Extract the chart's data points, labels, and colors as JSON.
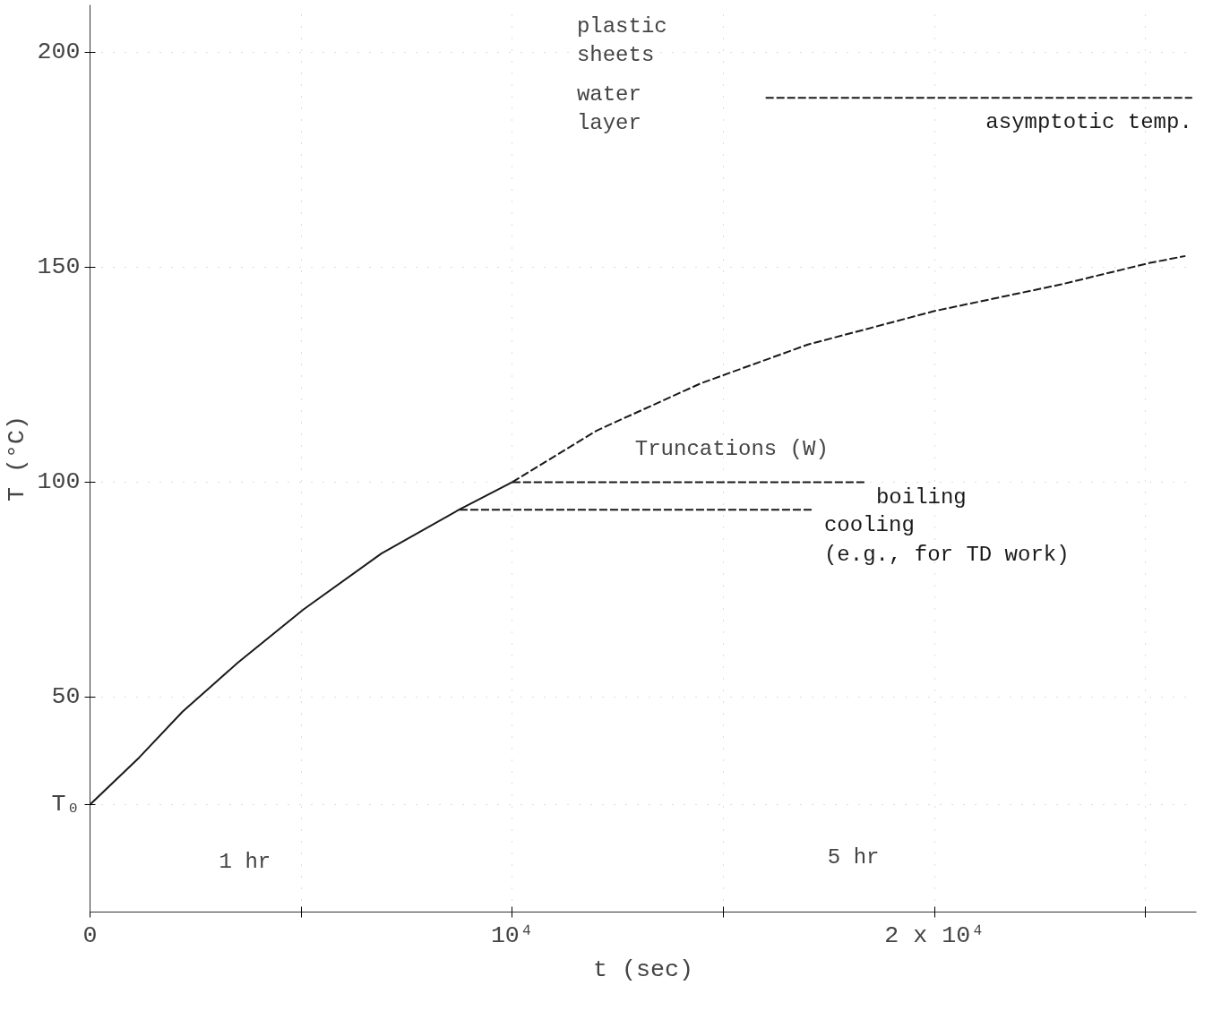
{
  "chart_data": {
    "type": "line",
    "xlabel": "t (sec)",
    "ylabel": "T (°C)",
    "xlim": [
      0,
      26200
    ],
    "ylim": [
      0,
      211
    ],
    "xticks": [
      0,
      {
        "value": 5000,
        "label": null
      },
      {
        "value": 10000,
        "label": "10⁴"
      },
      {
        "value": 15000,
        "label": null
      },
      {
        "value": 20000,
        "label": "2 x 10⁴"
      },
      {
        "value": 25000,
        "label": null
      }
    ],
    "yticks": [
      {
        "value": 25,
        "label": "T₀"
      },
      50,
      100,
      150,
      200
    ],
    "grid": true,
    "marker": "none",
    "series": [
      {
        "color": "#1a1a1a",
        "line_style": "solid",
        "x": [
          0,
          1170,
          2190,
          3500,
          5057,
          6900,
          8740,
          10000
        ],
        "values": [
          25,
          36,
          46.6,
          58,
          70.4,
          83.4,
          93.6,
          100
        ]
      },
      {
        "color": "#1a1a1a",
        "line_style": "dashed",
        "x": [
          10000,
          12000,
          14470,
          17000,
          20000,
          23000,
          25100,
          25940
        ],
        "values": [
          100,
          112,
          123,
          132,
          139.8,
          146,
          151,
          152.6
        ]
      },
      {
        "name": "boiling",
        "color": "#1a1a1a",
        "line_style": "dashed",
        "x": [
          10000,
          18360
        ],
        "values": [
          100,
          100
        ]
      },
      {
        "name": "cooling\n(e.g., for TD work)",
        "color": "#1a1a1a",
        "line_style": "dashed",
        "x": [
          8750,
          17130
        ],
        "values": [
          93.6,
          93.6
        ]
      },
      {
        "name": "asymptotic temp.",
        "color": "#1a1a1a",
        "line_style": "dashed",
        "x": [
          16000,
          26100
        ],
        "values": [
          189.4,
          189.4
        ]
      }
    ],
    "annotations": [
      "1 hr",
      "5 hr",
      "Truncations (W)",
      "plastic\nsheets",
      "water\nlayer"
    ]
  }
}
